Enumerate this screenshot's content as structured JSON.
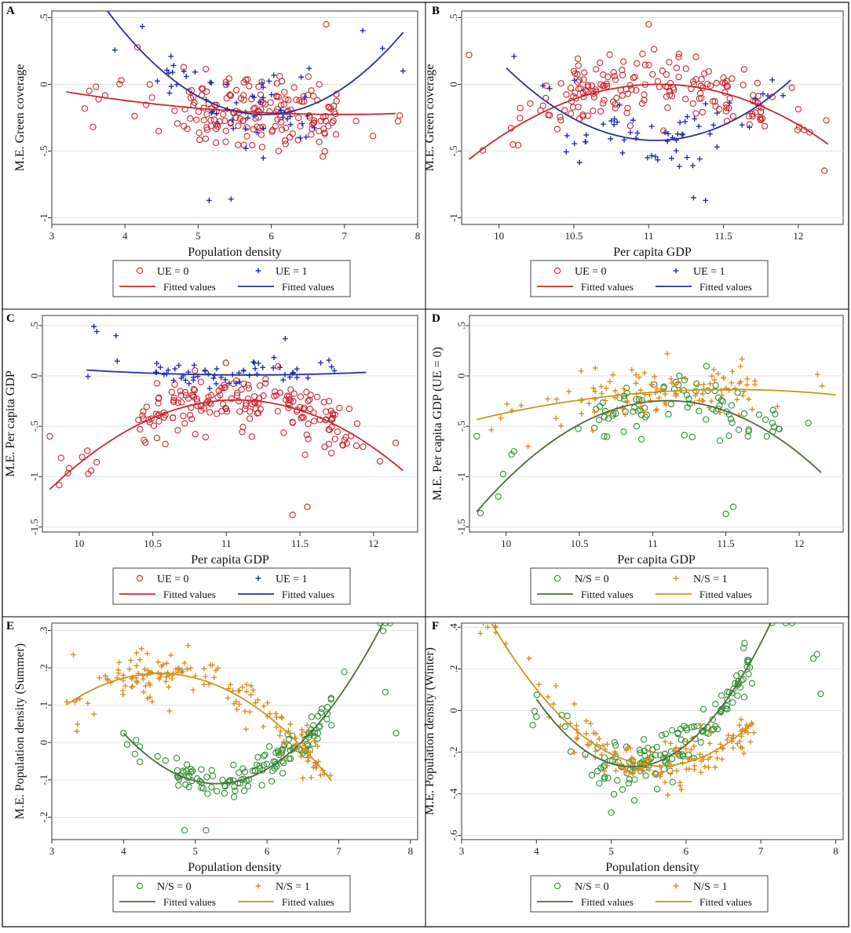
{
  "figure": {
    "colors": {
      "red": "#c8282e",
      "blue": "#1f2fb4",
      "green": "#2f8f2f",
      "orange": "#e08a1e",
      "fit_green": "#4e6b3c",
      "fit_orange": "#c8961e",
      "fit_red": "#c8282e",
      "fit_blue": "#2a2f9c"
    }
  },
  "chart_data": [
    {
      "id": "A",
      "type": "scatter",
      "ylabel": "M.E. Green coverage",
      "xlabel": "Population density",
      "xlim": [
        3,
        8
      ],
      "ylim": [
        -1.05,
        0.55
      ],
      "xticks": [
        3,
        4,
        5,
        6,
        7,
        8
      ],
      "xtick_labels": [
        "3",
        "4",
        "5",
        "6",
        "7",
        "8"
      ],
      "yticks": [
        -1,
        -0.5,
        0,
        0.5
      ],
      "ytick_labels": [
        "-1",
        "-.5",
        "0",
        ".5"
      ],
      "series": [
        {
          "name": "UE = 0",
          "marker": "circle",
          "color": "#c8282e",
          "n": 190,
          "seed": 11,
          "x_range": [
            3.3,
            7.8
          ],
          "dense_range": [
            4.8,
            6.9
          ],
          "trend": [
            -0.2,
            -0.035,
            0.012
          ],
          "noise": 0.2,
          "fixed": [
            [
              6.1,
              -0.5
            ],
            [
              6.75,
              0.45
            ],
            [
              3.95,
              0.03
            ]
          ]
        },
        {
          "name": "UE = 1",
          "marker": "plus",
          "color": "#1f2fb4",
          "n": 60,
          "seed": 23,
          "x_range": [
            3.2,
            7.8
          ],
          "dense_range": [
            4.5,
            6.6
          ],
          "trend": [
            -0.2,
            -0.135,
            0.17
          ],
          "noise": 0.17,
          "fixed": [
            [
              5.15,
              -0.87
            ],
            [
              5.45,
              -0.86
            ],
            [
              7.8,
              0.1
            ]
          ]
        }
      ],
      "fits": [
        {
          "name": "Fitted values",
          "color": "#c8282e",
          "coefs": [
            -0.2,
            -0.035,
            0.012
          ],
          "x_range": [
            3.2,
            7.7
          ]
        },
        {
          "name": "Fitted values",
          "color": "#2a2f9c",
          "coefs": [
            -0.2,
            -0.135,
            0.17
          ],
          "x_range": [
            3.2,
            7.8
          ]
        }
      ],
      "legend": {
        "items": [
          "UE = 0",
          "UE = 1"
        ],
        "fit_labels": [
          "Fitted values",
          "Fitted values"
        ]
      }
    },
    {
      "id": "B",
      "type": "scatter",
      "ylabel": "M.E. Green coverage",
      "xlabel": "Per capita GDP",
      "xlim": [
        9.75,
        12.3
      ],
      "ylim": [
        -1.05,
        0.55
      ],
      "xticks": [
        10,
        10.5,
        11,
        11.5,
        12
      ],
      "xtick_labels": [
        "10",
        "10.5",
        "11",
        "11.5",
        "12"
      ],
      "yticks": [
        -1,
        -0.5,
        0,
        0.5
      ],
      "ytick_labels": [
        "-1",
        "-.5",
        "0",
        ".5"
      ],
      "series": [
        {
          "name": "UE = 0",
          "marker": "circle",
          "color": "#c8282e",
          "n": 190,
          "seed": 31,
          "x_range": [
            9.8,
            12.2
          ],
          "dense_range": [
            10.4,
            11.8
          ],
          "trend": [
            0,
            0.03,
            -0.35
          ],
          "noise": 0.16,
          "fixed": [
            [
              11,
              0.45
            ],
            [
              9.8,
              0.22
            ]
          ]
        },
        {
          "name": "UE = 1",
          "marker": "plus",
          "color": "#1f2fb4",
          "n": 60,
          "seed": 41,
          "x_range": [
            10.05,
            11.95
          ],
          "dense_range": [
            10.4,
            11.8
          ],
          "trend": [
            -0.42,
            -0.02,
            0.55
          ],
          "noise": 0.16,
          "fixed": [
            [
              11.3,
              -0.85
            ],
            [
              11.38,
              -0.87
            ],
            [
              10.1,
              0.21
            ]
          ]
        }
      ],
      "fits": [
        {
          "name": "Fitted values",
          "color": "#c8282e",
          "coefs": [
            0,
            0.03,
            -0.35
          ],
          "x_range": [
            9.8,
            12.2
          ]
        },
        {
          "name": "Fitted values",
          "color": "#2a2f9c",
          "coefs": [
            -0.42,
            -0.02,
            0.55
          ],
          "x_range": [
            10.05,
            11.95
          ]
        }
      ],
      "legend": {
        "items": [
          "UE = 0",
          "UE = 1"
        ],
        "fit_labels": [
          "Fitted values",
          "Fitted values"
        ]
      }
    },
    {
      "id": "C",
      "type": "scatter",
      "ylabel": "M.E. Per capita GDP",
      "xlabel": "Per capita GDP",
      "xlim": [
        9.75,
        12.3
      ],
      "ylim": [
        -1.55,
        0.6
      ],
      "xticks": [
        10,
        10.5,
        11,
        11.5,
        12
      ],
      "xtick_labels": [
        "10",
        "10.5",
        "11",
        "11.5",
        "12"
      ],
      "yticks": [
        -1.5,
        -1,
        -0.5,
        0,
        0.5
      ],
      "ytick_labels": [
        "-1.5",
        "-1",
        "-.5",
        "0",
        ".5"
      ],
      "series": [
        {
          "name": "UE = 0",
          "marker": "circle",
          "color": "#c8282e",
          "n": 200,
          "seed": 53,
          "x_range": [
            9.8,
            12.2
          ],
          "dense_range": [
            10.4,
            11.9
          ],
          "trend": [
            -0.24,
            0.05,
            -0.55
          ],
          "noise": 0.2,
          "fixed": [
            [
              11.45,
              -1.38
            ],
            [
              11.55,
              -1.3
            ],
            [
              9.8,
              -0.6
            ]
          ]
        },
        {
          "name": "UE = 1",
          "marker": "plus",
          "color": "#1f2fb4",
          "n": 60,
          "seed": 67,
          "x_range": [
            10.05,
            11.95
          ],
          "dense_range": [
            10.5,
            11.5
          ],
          "trend": [
            0.01,
            -0.01,
            0.04
          ],
          "noise": 0.09,
          "fixed": [
            [
              10.1,
              0.49
            ],
            [
              10.12,
              0.44
            ],
            [
              10.25,
              0.4
            ],
            [
              11.4,
              0.37
            ]
          ]
        }
      ],
      "fits": [
        {
          "name": "Fitted values",
          "color": "#c8282e",
          "coefs": [
            -0.24,
            0.05,
            -0.55
          ],
          "x_range": [
            9.8,
            12.2
          ]
        },
        {
          "name": "Fitted values",
          "color": "#2a2f9c",
          "coefs": [
            0.01,
            -0.01,
            0.04
          ],
          "x_range": [
            10.05,
            11.95
          ]
        }
      ],
      "legend": {
        "items": [
          "UE = 0",
          "UE = 1"
        ],
        "fit_labels": [
          "Fitted values",
          "Fitted values"
        ]
      }
    },
    {
      "id": "D",
      "type": "scatter",
      "ylabel": "M.E. Per capita GDP (UE = 0)",
      "xlabel": "Per capita GDP",
      "xlim": [
        9.75,
        12.3
      ],
      "ylim": [
        -1.55,
        0.6
      ],
      "xticks": [
        10,
        10.5,
        11,
        11.5,
        12
      ],
      "xtick_labels": [
        "10",
        "10.5",
        "11",
        "11.5",
        "12"
      ],
      "yticks": [
        -1.5,
        -1,
        -0.5,
        0,
        0.5
      ],
      "ytick_labels": [
        "-1.5",
        "-1",
        "-.5",
        "0",
        ".5"
      ],
      "series": [
        {
          "name": "N/S = 0",
          "marker": "circle",
          "color": "#2f8f2f",
          "n": 95,
          "seed": 71,
          "x_range": [
            9.8,
            12.15
          ],
          "dense_range": [
            10.6,
            11.9
          ],
          "trend": [
            -0.25,
            0.1,
            -0.65
          ],
          "noise": 0.22,
          "fixed": [
            [
              11.5,
              -1.37
            ],
            [
              11.55,
              -1.3
            ],
            [
              9.8,
              -0.6
            ]
          ]
        },
        {
          "name": "N/S = 1",
          "marker": "plus",
          "color": "#e08a1e",
          "n": 120,
          "seed": 83,
          "x_range": [
            9.8,
            12.25
          ],
          "dense_range": [
            10.5,
            11.7
          ],
          "trend": [
            -0.16,
            0.1,
            -0.1
          ],
          "noise": 0.16,
          "fixed": [
            [
              11.1,
              0.22
            ],
            [
              10.15,
              -0.7
            ]
          ]
        }
      ],
      "fits": [
        {
          "name": "Fitted values",
          "color": "#4e6b3c",
          "coefs": [
            -0.25,
            0.1,
            -0.65
          ],
          "x_range": [
            9.8,
            12.15
          ]
        },
        {
          "name": "Fitted values",
          "color": "#c8961e",
          "coefs": [
            -0.16,
            0.1,
            -0.1
          ],
          "x_range": [
            9.8,
            12.25
          ]
        }
      ],
      "legend": {
        "items": [
          "N/S = 0",
          "N/S = 1"
        ],
        "fit_labels": [
          "Fitted values",
          "Fitted values"
        ]
      }
    },
    {
      "id": "E",
      "type": "scatter",
      "ylabel": "M.E. Population density (Summer)",
      "xlabel": "Population density",
      "xlim": [
        3,
        8.1
      ],
      "ylim": [
        -0.26,
        0.32
      ],
      "xticks": [
        3,
        4,
        5,
        6,
        7,
        8
      ],
      "xtick_labels": [
        "3",
        "4",
        "5",
        "6",
        "7",
        "8"
      ],
      "yticks": [
        -0.2,
        -0.1,
        0,
        0.1,
        0.2,
        0.3
      ],
      "ytick_labels": [
        "-.2",
        "-.1",
        "0",
        ".1",
        ".2",
        ".3"
      ],
      "series": [
        {
          "name": "N/S = 0",
          "marker": "circle",
          "color": "#2f8f2f",
          "n": 140,
          "seed": 91,
          "x_range": [
            4.0,
            7.8
          ],
          "dense_range": [
            4.7,
            6.9
          ],
          "trend": [
            -0.105,
            0.04,
            0.08
          ],
          "noise": 0.03,
          "fixed": [
            [
              4.85,
              -0.235
            ],
            [
              5.15,
              -0.235
            ],
            [
              7.65,
              0.135
            ],
            [
              7.8,
              0.025
            ],
            [
              4.0,
              0.025
            ],
            [
              4.05,
              -0.005
            ]
          ]
        },
        {
          "name": "N/S = 1",
          "marker": "plus",
          "color": "#e08a1e",
          "n": 160,
          "seed": 97,
          "x_range": [
            3.2,
            6.9
          ],
          "dense_range": [
            3.9,
            6.8
          ],
          "trend": [
            0.13,
            -0.105,
            -0.05
          ],
          "noise": 0.045,
          "fixed": [
            [
              3.3,
              0.235
            ],
            [
              3.35,
              0.03
            ],
            [
              4.9,
              0.26
            ]
          ]
        }
      ],
      "fits": [
        {
          "name": "Fitted values",
          "color": "#4e6b3c",
          "coefs": [
            -0.105,
            0.04,
            0.08
          ],
          "x_range": [
            4.0,
            7.8
          ]
        },
        {
          "name": "Fitted values",
          "color": "#c8961e",
          "coefs": [
            0.13,
            -0.105,
            -0.05
          ],
          "x_range": [
            3.2,
            6.9
          ]
        }
      ],
      "legend": {
        "items": [
          "N/S = 0",
          "N/S = 1"
        ],
        "fit_labels": [
          "Fitted values",
          "Fitted values"
        ]
      }
    },
    {
      "id": "F",
      "type": "scatter",
      "ylabel": "M.E. Population density (Winter)",
      "xlabel": "Population density",
      "xlim": [
        3,
        8.1
      ],
      "ylim": [
        -0.62,
        0.42
      ],
      "xticks": [
        3,
        4,
        5,
        6,
        7,
        8
      ],
      "xtick_labels": [
        "3",
        "4",
        "5",
        "6",
        "7",
        "8"
      ],
      "yticks": [
        -0.6,
        -0.4,
        -0.2,
        0,
        0.2,
        0.4
      ],
      "ytick_labels": [
        "-.6",
        "-.4",
        "-.2",
        "0",
        ".2",
        ".4"
      ],
      "series": [
        {
          "name": "N/S = 0",
          "marker": "circle",
          "color": "#2f8f2f",
          "n": 150,
          "seed": 101,
          "x_range": [
            3.95,
            7.85
          ],
          "dense_range": [
            4.8,
            6.9
          ],
          "trend": [
            -0.255,
            0.11,
            0.2
          ],
          "noise": 0.08,
          "fixed": [
            [
              5.0,
              -0.49
            ],
            [
              7.7,
              0.25
            ],
            [
              7.75,
              0.27
            ],
            [
              7.8,
              0.08
            ],
            [
              3.95,
              -0.07
            ],
            [
              4.0,
              -0.03
            ]
          ]
        },
        {
          "name": "N/S = 1",
          "marker": "plus",
          "color": "#e08a1e",
          "n": 150,
          "seed": 107,
          "x_range": [
            3.2,
            6.95
          ],
          "dense_range": [
            4.5,
            6.9
          ],
          "trend": [
            -0.265,
            -0.028,
            0.135
          ],
          "noise": 0.07,
          "fixed": [
            [
              3.25,
              0.37
            ],
            [
              3.35,
              0.4
            ],
            [
              3.9,
              0.25
            ]
          ]
        }
      ],
      "fits": [
        {
          "name": "Fitted values",
          "color": "#4e6b3c",
          "coefs": [
            -0.255,
            0.11,
            0.2
          ],
          "x_range": [
            4.0,
            7.8
          ]
        },
        {
          "name": "Fitted values",
          "color": "#c8961e",
          "coefs": [
            -0.265,
            -0.028,
            0.135
          ],
          "x_range": [
            3.2,
            6.9
          ]
        }
      ],
      "legend": {
        "items": [
          "N/S = 0",
          "N/S = 1"
        ],
        "fit_labels": [
          "Fitted values",
          "Fitted values"
        ]
      }
    }
  ]
}
